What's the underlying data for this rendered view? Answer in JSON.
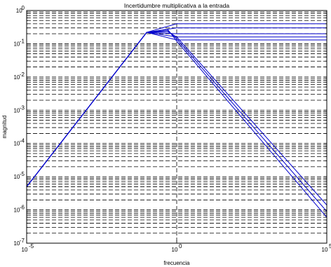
{
  "chart_data": {
    "type": "line",
    "title": "Incertidumbre multiplicativa a la entrada",
    "xlabel": "frecuencia",
    "ylabel": "magnitud",
    "xscale": "log",
    "yscale": "log",
    "xlim": [
      1e-05,
      100000
    ],
    "ylim": [
      1e-07,
      1
    ],
    "grid": true,
    "x_ticks": [
      {
        "value": 1e-05,
        "base": "10",
        "exp": "-5"
      },
      {
        "value": 1,
        "base": "10",
        "exp": "0"
      },
      {
        "value": 100000,
        "base": "10",
        "exp": "5"
      }
    ],
    "y_ticks": [
      {
        "value": 1e-07,
        "base": "10",
        "exp": "-7"
      },
      {
        "value": 1e-06,
        "base": "10",
        "exp": "-6"
      },
      {
        "value": 1e-05,
        "base": "10",
        "exp": "-5"
      },
      {
        "value": 0.0001,
        "base": "10",
        "exp": "-4"
      },
      {
        "value": 0.001,
        "base": "10",
        "exp": "-3"
      },
      {
        "value": 0.01,
        "base": "10",
        "exp": "-2"
      },
      {
        "value": 0.1,
        "base": "10",
        "exp": "-1"
      },
      {
        "value": 1,
        "base": "10",
        "exp": "0"
      }
    ],
    "series": [
      {
        "color": "#0000cc",
        "x": [
          1e-05,
          0.1,
          1,
          100000
        ],
        "y": [
          5e-06,
          0.22,
          0.4,
          0.4
        ]
      },
      {
        "color": "#0000cc",
        "x": [
          1e-05,
          0.1,
          1,
          100000
        ],
        "y": [
          5e-06,
          0.22,
          0.3,
          0.3
        ]
      },
      {
        "color": "#0000cc",
        "x": [
          1e-05,
          0.1,
          1,
          100000
        ],
        "y": [
          5e-06,
          0.22,
          0.2,
          0.2
        ]
      },
      {
        "color": "#0000cc",
        "x": [
          1e-05,
          0.1,
          1,
          100000
        ],
        "y": [
          5e-06,
          0.22,
          0.16,
          0.16
        ]
      },
      {
        "color": "#0000cc",
        "x": [
          1e-05,
          0.1,
          1,
          100000
        ],
        "y": [
          5e-06,
          0.22,
          0.13,
          0.13
        ]
      },
      {
        "color": "#0000cc",
        "x": [
          1e-05,
          0.1,
          0.5,
          1,
          100000
        ],
        "y": [
          5e-06,
          0.22,
          0.27,
          0.12,
          6e-07
        ]
      },
      {
        "color": "#0000cc",
        "x": [
          1e-05,
          0.1,
          0.5,
          1,
          100000
        ],
        "y": [
          5e-06,
          0.22,
          0.25,
          0.14,
          9e-07
        ]
      },
      {
        "color": "#0000cc",
        "x": [
          1e-05,
          0.1,
          0.5,
          1,
          100000
        ],
        "y": [
          5e-06,
          0.22,
          0.23,
          0.16,
          1.4e-06
        ]
      }
    ]
  }
}
